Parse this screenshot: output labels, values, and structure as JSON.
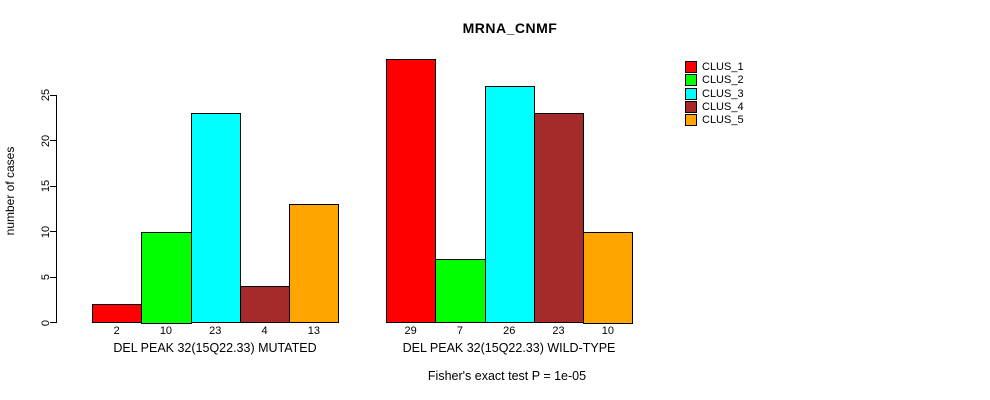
{
  "title": "MRNA_CNMF",
  "chart_data": {
    "type": "bar",
    "title": "MRNA_CNMF",
    "xlabel": "",
    "ylabel": "number of cases",
    "ylim": [
      0,
      25
    ],
    "yticks": [
      0,
      5,
      10,
      15,
      20,
      25
    ],
    "grid": false,
    "legend_position": "right",
    "bar_value_labels": true,
    "categories": [
      "DEL PEAK 32(15Q22.33) MUTATED",
      "DEL PEAK 32(15Q22.33) WILD-TYPE"
    ],
    "series": [
      {
        "name": "CLUS_1",
        "color": "#FF0000",
        "values": [
          2,
          29
        ]
      },
      {
        "name": "CLUS_2",
        "color": "#00FF00",
        "values": [
          10,
          7
        ]
      },
      {
        "name": "CLUS_3",
        "color": "#00FFFF",
        "values": [
          23,
          26
        ]
      },
      {
        "name": "CLUS_4",
        "color": "#A52A2A",
        "values": [
          4,
          23
        ]
      },
      {
        "name": "CLUS_5",
        "color": "#FFA500",
        "values": [
          13,
          10
        ]
      }
    ],
    "footnote": "Fisher's exact test P = 1e-05"
  }
}
